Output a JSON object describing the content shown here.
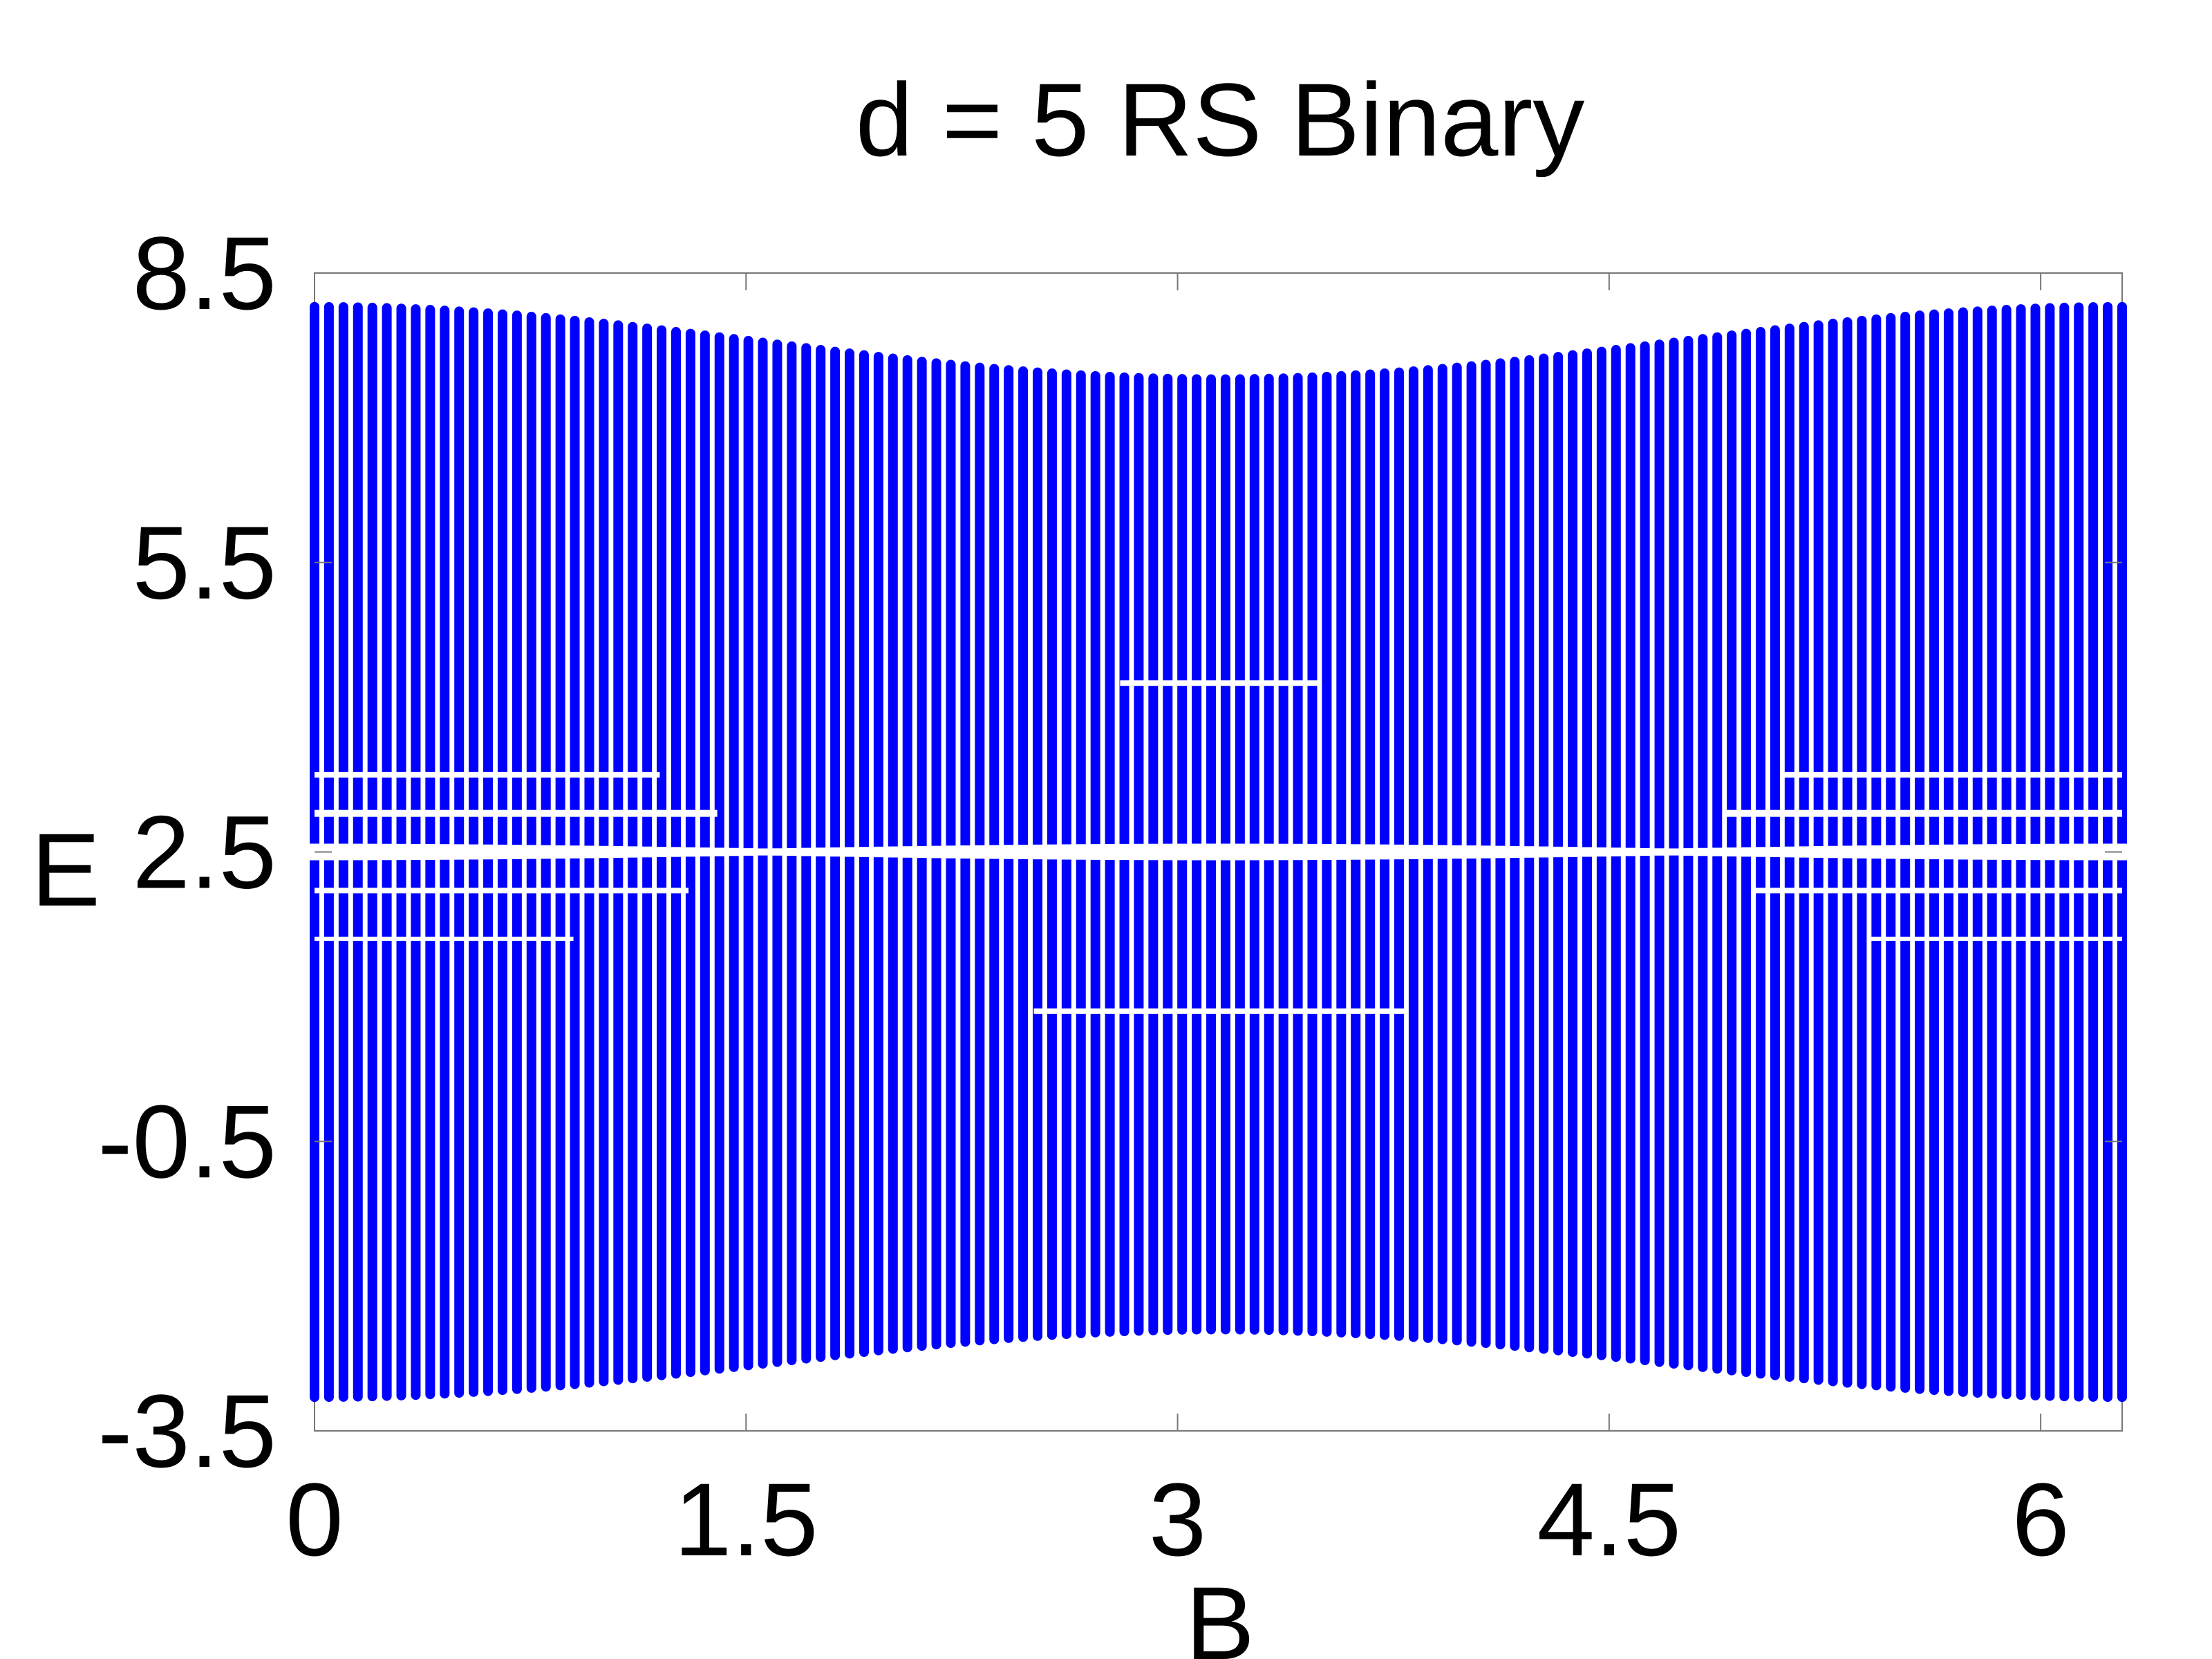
{
  "chart_data": {
    "type": "scatter",
    "title": "d = 5 RS Binary",
    "xlabel": "B",
    "ylabel": "E",
    "xlim": [
      0,
      6.2832
    ],
    "ylim": [
      -3.5,
      8.5
    ],
    "xticks": [
      "0",
      "1.5",
      "3",
      "4.5",
      "6"
    ],
    "yticks": [
      "8.5",
      "5.5",
      "2.5",
      "-0.5",
      "-3.5"
    ],
    "grid": false,
    "legend": "none",
    "marker_color": "#0000ff",
    "series": [
      {
        "points_per_column": "continuous energy bands",
        "upper_edge": [
          {
            "B": 0,
            "E": 8.2
          },
          {
            "B": 1.5,
            "E": 7.6
          },
          {
            "B": 3.14,
            "E": 7.45
          },
          {
            "B": 4.7,
            "E": 7.6
          },
          {
            "B": 6.28,
            "E": 8.2
          }
        ],
        "lower_edge": [
          {
            "B": 0,
            "E": -3.2
          },
          {
            "B": 1.5,
            "E": -2.7
          },
          {
            "B": 3.14,
            "E": -2.5
          },
          {
            "B": 4.7,
            "E": -2.7
          },
          {
            "B": 6.28,
            "E": -3.2
          }
        ],
        "gaps": [
          {
            "label": "gap near E = 2.5",
            "E_center": 2.5
          },
          {
            "label": "small gaps near E = 2.9, 3.3, 2.0",
            "E_center": 2.9
          }
        ]
      }
    ]
  }
}
